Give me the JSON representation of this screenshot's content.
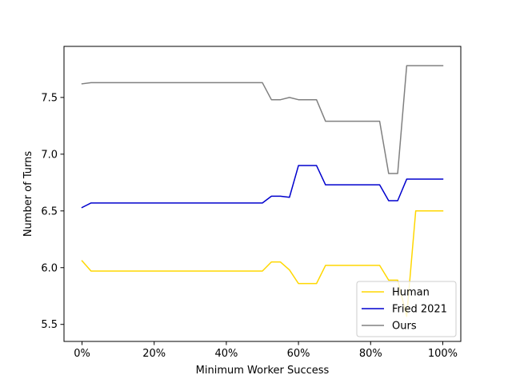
{
  "chart_data": {
    "type": "line",
    "title": "",
    "xlabel": "Minimum Worker Success",
    "ylabel": "Number of Turns",
    "xlim": [
      -5,
      105
    ],
    "ylim": [
      5.35,
      7.95
    ],
    "x_ticks": [
      {
        "value": 0,
        "label": "0%"
      },
      {
        "value": 20,
        "label": "20%"
      },
      {
        "value": 40,
        "label": "40%"
      },
      {
        "value": 60,
        "label": "60%"
      },
      {
        "value": 80,
        "label": "80%"
      },
      {
        "value": 100,
        "label": "100%"
      }
    ],
    "y_ticks": [
      {
        "value": 5.5,
        "label": "5.5"
      },
      {
        "value": 6.0,
        "label": "6.0"
      },
      {
        "value": 6.5,
        "label": "6.5"
      },
      {
        "value": 7.0,
        "label": "7.0"
      },
      {
        "value": 7.5,
        "label": "7.5"
      }
    ],
    "grid": false,
    "legend_position": "bottom-right",
    "series": [
      {
        "name": "Human",
        "color": "#FFD700",
        "x": [
          0,
          2.5,
          5,
          7.5,
          10,
          12.5,
          15,
          17.5,
          20,
          22.5,
          25,
          27.5,
          30,
          32.5,
          35,
          37.5,
          40,
          42.5,
          45,
          47.5,
          50,
          52.5,
          55,
          57.5,
          60,
          62.5,
          65,
          67.5,
          70,
          72.5,
          75,
          77.5,
          80,
          82.5,
          85,
          87.5,
          90,
          92.5,
          95,
          97.5,
          100
        ],
        "values": [
          6.06,
          5.97,
          5.97,
          5.97,
          5.97,
          5.97,
          5.97,
          5.97,
          5.97,
          5.97,
          5.97,
          5.97,
          5.97,
          5.97,
          5.97,
          5.97,
          5.97,
          5.97,
          5.97,
          5.97,
          5.97,
          6.05,
          6.05,
          5.98,
          5.86,
          5.86,
          5.86,
          6.02,
          6.02,
          6.02,
          6.02,
          6.02,
          6.02,
          6.02,
          5.89,
          5.89,
          5.57,
          6.5,
          6.5,
          6.5,
          6.5
        ]
      },
      {
        "name": "Fried 2021",
        "color": "#0000CD",
        "x": [
          0,
          2.5,
          5,
          7.5,
          10,
          12.5,
          15,
          17.5,
          20,
          22.5,
          25,
          27.5,
          30,
          32.5,
          35,
          37.5,
          40,
          42.5,
          45,
          47.5,
          50,
          52.5,
          55,
          57.5,
          60,
          62.5,
          65,
          67.5,
          70,
          72.5,
          75,
          77.5,
          80,
          82.5,
          85,
          87.5,
          90,
          92.5,
          95,
          97.5,
          100
        ],
        "values": [
          6.53,
          6.57,
          6.57,
          6.57,
          6.57,
          6.57,
          6.57,
          6.57,
          6.57,
          6.57,
          6.57,
          6.57,
          6.57,
          6.57,
          6.57,
          6.57,
          6.57,
          6.57,
          6.57,
          6.57,
          6.57,
          6.63,
          6.63,
          6.62,
          6.9,
          6.9,
          6.9,
          6.73,
          6.73,
          6.73,
          6.73,
          6.73,
          6.73,
          6.73,
          6.59,
          6.59,
          6.78,
          6.78,
          6.78,
          6.78,
          6.78
        ]
      },
      {
        "name": "Ours",
        "color": "#808080",
        "x": [
          0,
          2.5,
          5,
          7.5,
          10,
          12.5,
          15,
          17.5,
          20,
          22.5,
          25,
          27.5,
          30,
          32.5,
          35,
          37.5,
          40,
          42.5,
          45,
          47.5,
          50,
          52.5,
          55,
          57.5,
          60,
          62.5,
          65,
          67.5,
          70,
          72.5,
          75,
          77.5,
          80,
          82.5,
          85,
          87.5,
          90,
          92.5,
          95,
          97.5,
          100
        ],
        "values": [
          7.62,
          7.63,
          7.63,
          7.63,
          7.63,
          7.63,
          7.63,
          7.63,
          7.63,
          7.63,
          7.63,
          7.63,
          7.63,
          7.63,
          7.63,
          7.63,
          7.63,
          7.63,
          7.63,
          7.63,
          7.63,
          7.48,
          7.48,
          7.5,
          7.48,
          7.48,
          7.48,
          7.29,
          7.29,
          7.29,
          7.29,
          7.29,
          7.29,
          7.29,
          6.83,
          6.83,
          7.78,
          7.78,
          7.78,
          7.78,
          7.78
        ]
      }
    ]
  }
}
